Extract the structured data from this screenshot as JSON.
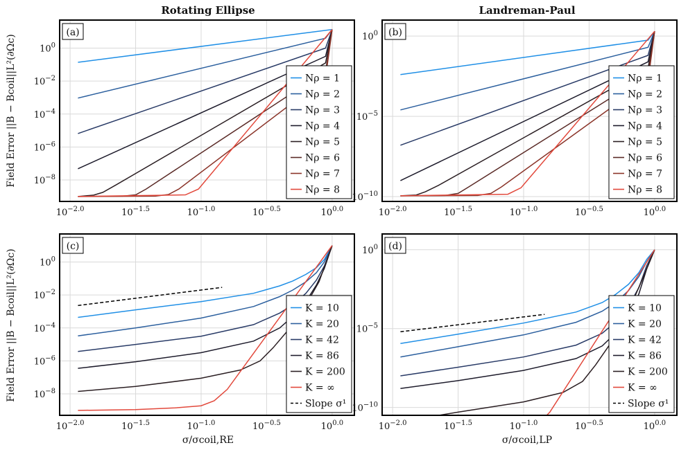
{
  "figure": {
    "col_titles": [
      "Rotating Ellipse",
      "Landreman-Paul"
    ],
    "ylabel": "Field Error ||B − Bcoil||L²(∂Ωc)",
    "xlabels": [
      "σ/σcoil,RE",
      "σ/σcoil,LP"
    ]
  },
  "colors": {
    "s1": "#1f8fe6",
    "s2": "#2b5f9e",
    "s3": "#283a66",
    "s4": "#1d1b2b",
    "s5": "#2a1e22",
    "s6": "#5a2a26",
    "s7": "#8a3328",
    "s8": "#e2483b"
  },
  "chart_data": [
    {
      "type": "line",
      "panel_label": "(a)",
      "xscale": "log10",
      "yscale": "log10",
      "xlim": [
        -2.08,
        0.17
      ],
      "ylim": [
        -9.3,
        1.7
      ],
      "xticks": [
        -2.0,
        -1.5,
        -1.0,
        -0.5,
        0.0
      ],
      "xtick_labels": [
        "10^-2.0",
        "10^-1.5",
        "10^-1.0",
        "10^-0.5",
        "10^0.0"
      ],
      "yticks": [
        -8,
        -6,
        -4,
        -2,
        0
      ],
      "ytick_labels": [
        "10^-8",
        "10^-6",
        "10^-4",
        "10^-2",
        "10^0"
      ],
      "legend": "right",
      "series": [
        {
          "name": "Nρ = 1",
          "color_key": "s1",
          "x": [
            -1.94,
            0.0
          ],
          "y": [
            -0.86,
            1.13
          ]
        },
        {
          "name": "Nρ = 2",
          "color_key": "s2",
          "x": [
            -1.94,
            -0.05,
            0.0
          ],
          "y": [
            -3.03,
            0.6,
            1.13
          ]
        },
        {
          "name": "Nρ = 3",
          "color_key": "s3",
          "x": [
            -1.94,
            -0.05,
            0.0
          ],
          "y": [
            -5.18,
            0.0,
            1.13
          ]
        },
        {
          "name": "Nρ = 4",
          "color_key": "s4",
          "x": [
            -1.94,
            -0.05,
            0.0
          ],
          "y": [
            -7.32,
            -0.5,
            1.13
          ]
        },
        {
          "name": "Nρ = 5",
          "color_key": "s5",
          "x": [
            -1.94,
            -1.82,
            -1.75,
            -1.65,
            -0.05,
            0.0
          ],
          "y": [
            -9.0,
            -8.92,
            -8.75,
            -8.3,
            -0.9,
            1.13
          ]
        },
        {
          "name": "Nρ = 6",
          "color_key": "s6",
          "x": [
            -1.94,
            -1.6,
            -1.5,
            -1.42,
            -0.05,
            0.0
          ],
          "y": [
            -9.0,
            -8.98,
            -8.9,
            -8.55,
            -1.4,
            1.13
          ]
        },
        {
          "name": "Nρ = 7",
          "color_key": "s7",
          "x": [
            -1.94,
            -1.35,
            -1.25,
            -1.17,
            -0.05,
            0.0
          ],
          "y": [
            -9.0,
            -8.98,
            -8.88,
            -8.55,
            -1.8,
            1.13
          ]
        },
        {
          "name": "Nρ = 8",
          "color_key": "s8",
          "x": [
            -1.94,
            -1.12,
            -1.02,
            0.0
          ],
          "y": [
            -9.0,
            -8.9,
            -8.55,
            1.13
          ]
        }
      ]
    },
    {
      "type": "line",
      "panel_label": "(b)",
      "xscale": "log10",
      "yscale": "log10",
      "xlim": [
        -2.08,
        0.17
      ],
      "ylim": [
        -10.3,
        1.0
      ],
      "xticks": [
        -2.0,
        -1.5,
        -1.0,
        -0.5,
        0.0
      ],
      "xtick_labels": [
        "10^-2.0",
        "10^-1.5",
        "10^-1.0",
        "10^-0.5",
        "10^0.0"
      ],
      "yticks": [
        -10,
        -5,
        0
      ],
      "ytick_labels": [
        "10^-10",
        "10^-5",
        "10^0"
      ],
      "legend": "right",
      "series": [
        {
          "name": "Nρ = 1",
          "color_key": "s1",
          "x": [
            -1.94,
            -0.05,
            0.0
          ],
          "y": [
            -2.4,
            -0.25,
            0.3
          ]
        },
        {
          "name": "Nρ = 2",
          "color_key": "s2",
          "x": [
            -1.94,
            -0.05,
            0.0
          ],
          "y": [
            -4.6,
            -0.7,
            0.3
          ]
        },
        {
          "name": "Nρ = 3",
          "color_key": "s3",
          "x": [
            -1.94,
            -0.05,
            0.0
          ],
          "y": [
            -6.8,
            -1.2,
            0.3
          ]
        },
        {
          "name": "Nρ = 4",
          "color_key": "s4",
          "x": [
            -1.94,
            -0.05,
            0.0
          ],
          "y": [
            -9.0,
            -1.6,
            0.3
          ]
        },
        {
          "name": "Nρ = 5",
          "color_key": "s5",
          "x": [
            -1.94,
            -1.82,
            -1.75,
            -1.65,
            -0.05,
            0.0
          ],
          "y": [
            -9.95,
            -9.9,
            -9.7,
            -9.3,
            -2.0,
            0.3
          ]
        },
        {
          "name": "Nρ = 6",
          "color_key": "s6",
          "x": [
            -1.94,
            -1.6,
            -1.5,
            -1.42,
            -0.05,
            0.0
          ],
          "y": [
            -9.95,
            -9.93,
            -9.8,
            -9.4,
            -2.4,
            0.3
          ]
        },
        {
          "name": "Nρ = 7",
          "color_key": "s7",
          "x": [
            -1.94,
            -1.35,
            -1.25,
            -1.17,
            -0.05,
            0.0
          ],
          "y": [
            -9.95,
            -9.93,
            -9.8,
            -9.4,
            -2.8,
            0.3
          ]
        },
        {
          "name": "Nρ = 8",
          "color_key": "s8",
          "x": [
            -1.94,
            -1.12,
            -1.02,
            0.0
          ],
          "y": [
            -9.95,
            -9.85,
            -9.45,
            0.3
          ]
        }
      ]
    },
    {
      "type": "line",
      "panel_label": "(c)",
      "xscale": "log10",
      "yscale": "log10",
      "xlim": [
        -2.08,
        0.17
      ],
      "ylim": [
        -9.3,
        1.7
      ],
      "xticks": [
        -2.0,
        -1.5,
        -1.0,
        -0.5,
        0.0
      ],
      "xtick_labels": [
        "10^-2.0",
        "10^-1.5",
        "10^-1.0",
        "10^-0.5",
        "10^0.0"
      ],
      "yticks": [
        -8,
        -6,
        -4,
        -2,
        0
      ],
      "ytick_labels": [
        "10^-8",
        "10^-6",
        "10^-4",
        "10^-2",
        "10^0"
      ],
      "legend": "right",
      "series": [
        {
          "name": "K = 10",
          "color_key": "s1",
          "x": [
            -1.94,
            -1.5,
            -1.0,
            -0.6,
            -0.4,
            -0.3,
            -0.2,
            -0.12,
            -0.06,
            0.0
          ],
          "y": [
            -3.36,
            -2.9,
            -2.4,
            -1.9,
            -1.45,
            -1.15,
            -0.75,
            -0.35,
            0.15,
            1.0
          ]
        },
        {
          "name": "K = 20",
          "color_key": "s2",
          "x": [
            -1.94,
            -1.5,
            -1.0,
            -0.6,
            -0.4,
            -0.3,
            -0.2,
            -0.12,
            -0.06,
            0.0
          ],
          "y": [
            -4.48,
            -4.0,
            -3.4,
            -2.7,
            -2.1,
            -1.7,
            -1.2,
            -0.65,
            0.0,
            1.0
          ]
        },
        {
          "name": "K = 42",
          "color_key": "s3",
          "x": [
            -1.94,
            -1.5,
            -1.0,
            -0.6,
            -0.4,
            -0.3,
            -0.2,
            -0.12,
            -0.06,
            0.0
          ],
          "y": [
            -5.43,
            -5.0,
            -4.5,
            -3.8,
            -3.1,
            -2.6,
            -1.9,
            -1.1,
            -0.25,
            1.0
          ]
        },
        {
          "name": "K = 86",
          "color_key": "s4",
          "x": [
            -1.94,
            -1.5,
            -1.0,
            -0.6,
            -0.4,
            -0.3,
            -0.2,
            -0.12,
            -0.06,
            0.0
          ],
          "y": [
            -6.45,
            -6.05,
            -5.5,
            -4.8,
            -4.0,
            -3.3,
            -2.4,
            -1.4,
            -0.4,
            1.0
          ]
        },
        {
          "name": "K = 200",
          "color_key": "s5",
          "x": [
            -1.94,
            -1.5,
            -1.0,
            -0.7,
            -0.55,
            -0.45,
            -0.3,
            -0.2,
            -0.1,
            0.0
          ],
          "y": [
            -7.85,
            -7.55,
            -7.05,
            -6.55,
            -6.0,
            -5.2,
            -3.8,
            -2.6,
            -1.2,
            1.0
          ]
        },
        {
          "name": "K = ∞",
          "color_key": "s8",
          "x": [
            -1.94,
            -1.5,
            -1.2,
            -1.0,
            -0.9,
            -0.8,
            0.0
          ],
          "y": [
            -9.0,
            -8.95,
            -8.85,
            -8.72,
            -8.42,
            -7.72,
            1.0
          ]
        }
      ],
      "annotations": [
        {
          "name": "Slope σ¹",
          "style": "dashed",
          "x": [
            -1.94,
            -0.84
          ],
          "y": [
            -2.64,
            -1.54
          ]
        }
      ]
    },
    {
      "type": "line",
      "panel_label": "(d)",
      "xscale": "log10",
      "yscale": "log10",
      "xlim": [
        -2.08,
        0.17
      ],
      "ylim": [
        -10.5,
        1.0
      ],
      "xticks": [
        -2.0,
        -1.5,
        -1.0,
        -0.5,
        0.0
      ],
      "xtick_labels": [
        "10^-2.0",
        "10^-1.5",
        "10^-1.0",
        "10^-0.5",
        "10^0.0"
      ],
      "yticks": [
        -10,
        -5,
        0
      ],
      "ytick_labels": [
        "10^-10",
        "10^-5",
        "10^0"
      ],
      "legend": "right",
      "series": [
        {
          "name": "K = 10",
          "color_key": "s1",
          "x": [
            -1.94,
            -1.5,
            -1.0,
            -0.6,
            -0.4,
            -0.3,
            -0.2,
            -0.12,
            -0.06,
            0.0
          ],
          "y": [
            -5.95,
            -5.35,
            -4.65,
            -3.95,
            -3.35,
            -2.85,
            -2.2,
            -1.45,
            -0.6,
            0.0
          ]
        },
        {
          "name": "K = 20",
          "color_key": "s2",
          "x": [
            -1.94,
            -1.5,
            -1.0,
            -0.6,
            -0.4,
            -0.3,
            -0.2,
            -0.12,
            -0.06,
            0.0
          ],
          "y": [
            -6.8,
            -6.15,
            -5.4,
            -4.6,
            -3.9,
            -3.35,
            -2.6,
            -1.7,
            -0.75,
            0.0
          ]
        },
        {
          "name": "K = 42",
          "color_key": "s3",
          "x": [
            -1.94,
            -1.5,
            -1.0,
            -0.6,
            -0.4,
            -0.3,
            -0.2,
            -0.12,
            -0.06,
            0.0
          ],
          "y": [
            -8.0,
            -7.45,
            -6.8,
            -6.05,
            -5.3,
            -4.6,
            -3.6,
            -2.4,
            -1.0,
            0.0
          ]
        },
        {
          "name": "K = 86",
          "color_key": "s4",
          "x": [
            -1.94,
            -1.5,
            -1.0,
            -0.6,
            -0.4,
            -0.3,
            -0.2,
            -0.12,
            -0.06,
            0.0
          ],
          "y": [
            -8.8,
            -8.3,
            -7.65,
            -6.9,
            -6.1,
            -5.3,
            -4.2,
            -2.8,
            -1.2,
            0.0
          ]
        },
        {
          "name": "K = 200",
          "color_key": "s5",
          "x": [
            -1.94,
            -1.5,
            -1.0,
            -0.7,
            -0.55,
            -0.45,
            -0.3,
            -0.2,
            -0.1,
            0.0
          ],
          "y": [
            -10.9,
            -10.3,
            -9.65,
            -9.05,
            -8.35,
            -7.3,
            -5.5,
            -3.9,
            -2.0,
            0.0
          ]
        },
        {
          "name": "K = ∞",
          "color_key": "s8",
          "x": [
            -1.94,
            -1.5,
            -1.2,
            -1.0,
            -0.9,
            -0.8,
            0.0
          ],
          "y": [
            -11.85,
            -11.8,
            -11.7,
            -11.55,
            -11.15,
            -10.3,
            0.0
          ]
        }
      ],
      "annotations": [
        {
          "name": "Slope σ¹",
          "style": "dashed",
          "x": [
            -1.94,
            -0.84
          ],
          "y": [
            -5.2,
            -4.1
          ]
        }
      ]
    }
  ]
}
